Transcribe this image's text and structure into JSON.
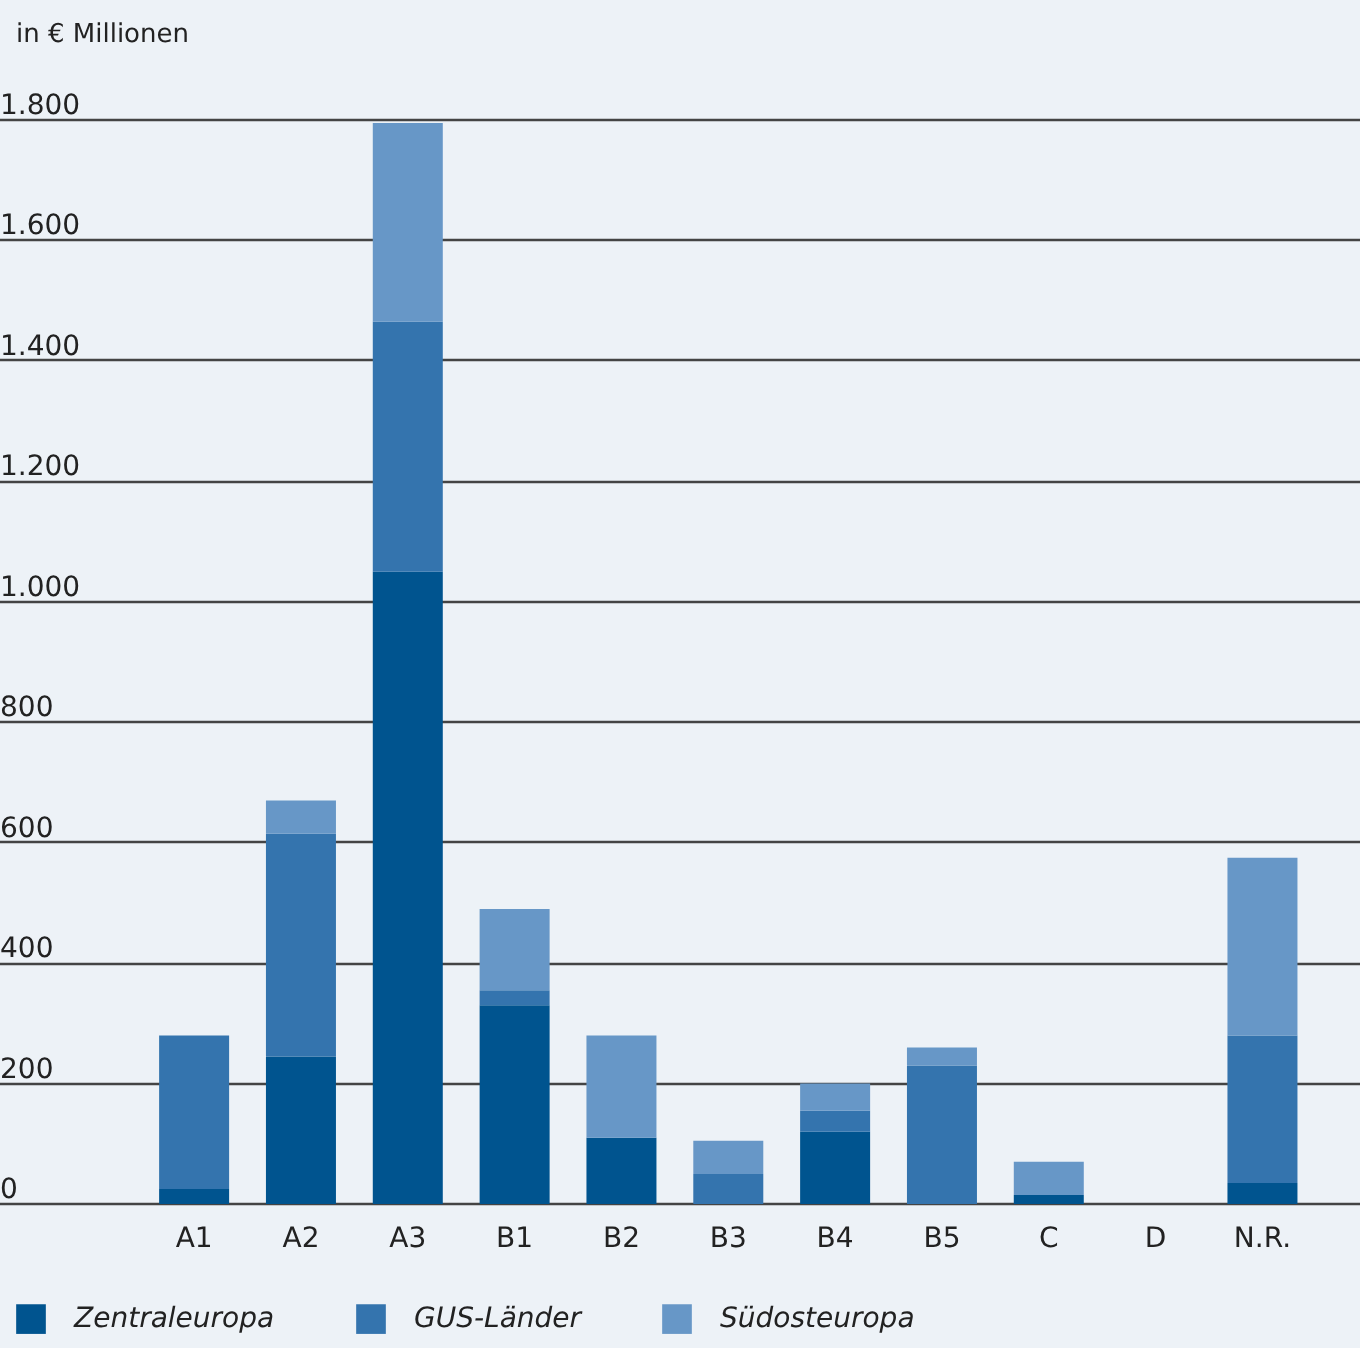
{
  "chart_data": {
    "type": "bar",
    "ylabel": "in € Millionen",
    "stacked": true,
    "legend": "bottom left",
    "grid": "y",
    "categories": [
      "A1",
      "A2",
      "A3",
      "B1",
      "B2",
      "B3",
      "B4",
      "B5",
      "C",
      "D",
      "N.R."
    ],
    "series": [
      {
        "name": "Zentraleuropa",
        "color": "#00548f",
        "values": [
          25,
          245,
          1050,
          330,
          110,
          0,
          120,
          0,
          15,
          0,
          35
        ]
      },
      {
        "name": "GUS-Länder",
        "color": "#3474ae",
        "values": [
          255,
          370,
          415,
          25,
          0,
          50,
          35,
          230,
          0,
          0,
          245
        ]
      },
      {
        "name": "Südosteuropa",
        "color": "#6797c7",
        "values": [
          0,
          55,
          330,
          135,
          170,
          55,
          45,
          30,
          55,
          0,
          295
        ]
      }
    ],
    "ylim": [
      0,
      1800
    ],
    "yticks": [
      0,
      200,
      400,
      600,
      800,
      {
        "value": 1000,
        "label": "1.000"
      },
      {
        "value": 1200,
        "label": "1.200"
      },
      {
        "value": 1400,
        "label": "1.400"
      },
      {
        "value": 1600,
        "label": "1.600"
      },
      {
        "value": 1800,
        "label": "1.800"
      }
    ]
  }
}
